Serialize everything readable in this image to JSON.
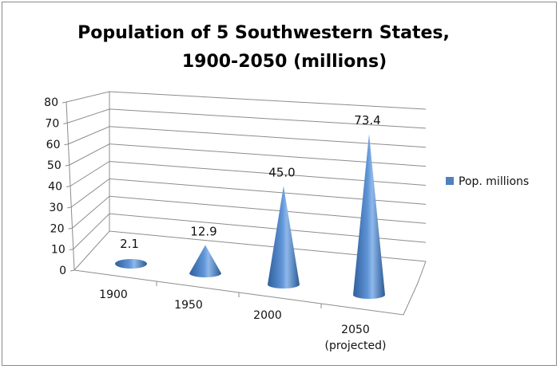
{
  "chart_data": {
    "type": "bar",
    "style": "3d-cone",
    "title": [
      "Population of 5 Southwestern States,",
      "1900-2050 (millions)"
    ],
    "categories": [
      "1900",
      "1950",
      "2000",
      "2050"
    ],
    "category_sublabels": [
      "",
      "",
      "",
      "(projected)"
    ],
    "series": [
      {
        "name": "Pop. millions",
        "values": [
          2.1,
          12.9,
          45.0,
          73.4
        ],
        "color": "#4f81bd"
      }
    ],
    "data_labels": [
      "2.1",
      "12.9",
      "45.0",
      "73.4"
    ],
    "yticks": [
      "0",
      "10",
      "20",
      "30",
      "40",
      "50",
      "60",
      "70",
      "80"
    ],
    "ylim": [
      0,
      80
    ],
    "grid": true,
    "legend": "right"
  }
}
